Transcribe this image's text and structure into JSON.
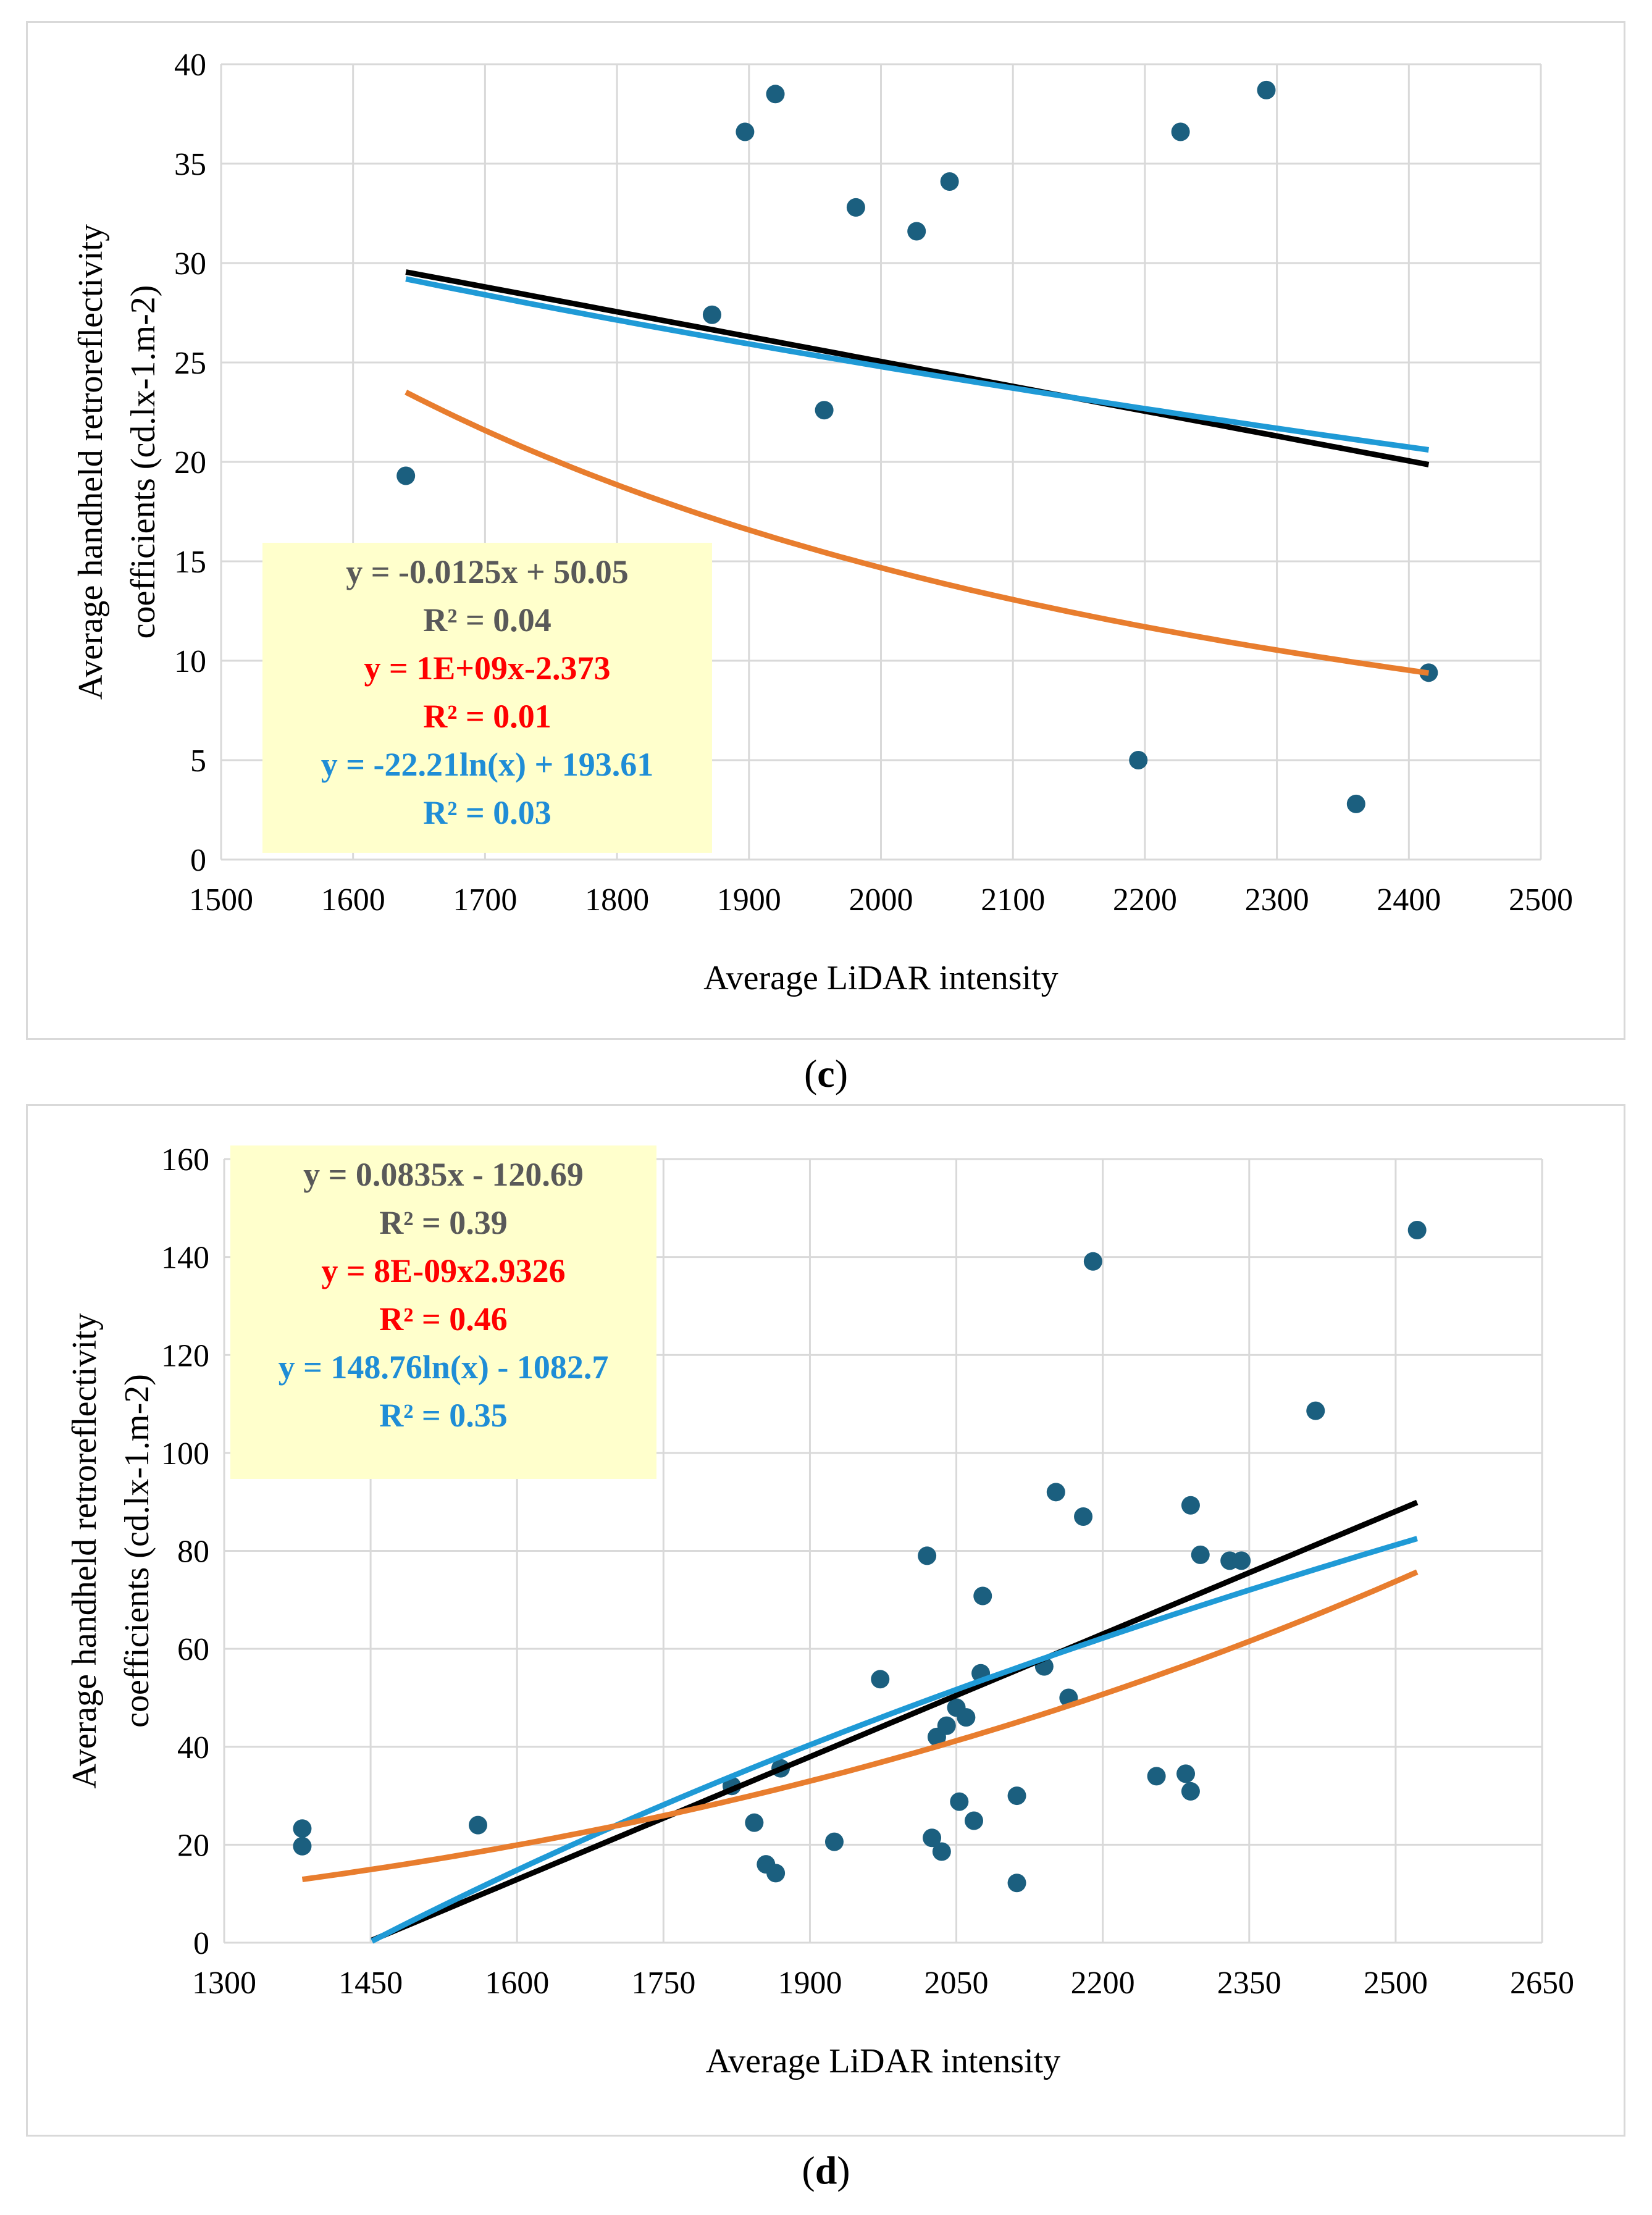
{
  "chart_data": [
    {
      "id": "c",
      "type": "scatter",
      "panel_label": "c",
      "xlabel": "Average LiDAR intensity",
      "ylabel_line1": "Average handheld retroreflectivity",
      "ylabel_line2": "coefficients (cd.lx-1.m-2)",
      "xlim": [
        1500,
        2500
      ],
      "ylim": [
        0,
        40
      ],
      "xticks": [
        1500,
        1600,
        1700,
        1800,
        1900,
        2000,
        2100,
        2200,
        2300,
        2400,
        2500
      ],
      "yticks": [
        0,
        5,
        10,
        15,
        20,
        25,
        30,
        35,
        40
      ],
      "grid": true,
      "points": [
        {
          "x": 1640,
          "y": 19.3
        },
        {
          "x": 1872,
          "y": 27.4
        },
        {
          "x": 1897,
          "y": 36.6
        },
        {
          "x": 1920,
          "y": 38.5
        },
        {
          "x": 1957,
          "y": 22.6
        },
        {
          "x": 1981,
          "y": 32.8
        },
        {
          "x": 2027,
          "y": 31.6
        },
        {
          "x": 2052,
          "y": 34.1
        },
        {
          "x": 2195,
          "y": 5.0
        },
        {
          "x": 2227,
          "y": 36.6
        },
        {
          "x": 2292,
          "y": 38.7
        },
        {
          "x": 2360,
          "y": 2.8
        },
        {
          "x": 2415,
          "y": 9.4
        }
      ],
      "trendlines": [
        {
          "kind": "linear",
          "a": 50.05,
          "b": -0.0125,
          "x_range": [
            1640,
            2415
          ],
          "color": "#000000",
          "equation": "y = -0.0125x + 50.05",
          "r2": "R² = 0.04"
        },
        {
          "kind": "power",
          "a": 1000000000,
          "b": -2.373,
          "x_range": [
            1640,
            2415
          ],
          "color": "#e87d2e",
          "equation": "y = 1E+09x-2.373",
          "r2": "R² = 0.01"
        },
        {
          "kind": "log",
          "a": 193.61,
          "b": -22.21,
          "x_range": [
            1640,
            2415
          ],
          "color": "#1f9ad6",
          "equation": "y = -22.21ln(x) + 193.61",
          "r2": "R² = 0.03"
        }
      ]
    },
    {
      "id": "d",
      "type": "scatter",
      "panel_label": "d",
      "xlabel": "Average LiDAR intensity",
      "ylabel_line1": "Average handheld retroreflectivity",
      "ylabel_line2": "coefficients (cd.lx-1.m-2)",
      "xlim": [
        1300,
        2650
      ],
      "ylim": [
        0,
        160
      ],
      "xticks": [
        1300,
        1450,
        1600,
        1750,
        1900,
        2050,
        2200,
        2350,
        2500,
        2650
      ],
      "yticks": [
        0,
        20,
        40,
        60,
        80,
        100,
        120,
        140,
        160
      ],
      "grid": true,
      "points": [
        {
          "x": 1380,
          "y": 23.3
        },
        {
          "x": 1380,
          "y": 19.7
        },
        {
          "x": 1560,
          "y": 24.0
        },
        {
          "x": 1820,
          "y": 32.0
        },
        {
          "x": 1843,
          "y": 24.5
        },
        {
          "x": 1855,
          "y": 16.0
        },
        {
          "x": 1865,
          "y": 14.2
        },
        {
          "x": 1870,
          "y": 35.6
        },
        {
          "x": 1925,
          "y": 20.6
        },
        {
          "x": 1972,
          "y": 53.8
        },
        {
          "x": 2020,
          "y": 79.0
        },
        {
          "x": 2025,
          "y": 21.4
        },
        {
          "x": 2030,
          "y": 42.0
        },
        {
          "x": 2035,
          "y": 18.6
        },
        {
          "x": 2040,
          "y": 44.3
        },
        {
          "x": 2050,
          "y": 48.0
        },
        {
          "x": 2053,
          "y": 28.8
        },
        {
          "x": 2060,
          "y": 46.0
        },
        {
          "x": 2068,
          "y": 24.9
        },
        {
          "x": 2075,
          "y": 55.0
        },
        {
          "x": 2077,
          "y": 70.8
        },
        {
          "x": 2112,
          "y": 30.0
        },
        {
          "x": 2112,
          "y": 12.2
        },
        {
          "x": 2140,
          "y": 56.4
        },
        {
          "x": 2152,
          "y": 92.0
        },
        {
          "x": 2165,
          "y": 50.0
        },
        {
          "x": 2180,
          "y": 87.0
        },
        {
          "x": 2190,
          "y": 139.1
        },
        {
          "x": 2255,
          "y": 34.0
        },
        {
          "x": 2285,
          "y": 34.5
        },
        {
          "x": 2290,
          "y": 30.9
        },
        {
          "x": 2290,
          "y": 89.3
        },
        {
          "x": 2300,
          "y": 79.2
        },
        {
          "x": 2330,
          "y": 78.0
        },
        {
          "x": 2342,
          "y": 78.0
        },
        {
          "x": 2418,
          "y": 108.6
        },
        {
          "x": 2522,
          "y": 145.5
        }
      ],
      "trendlines": [
        {
          "kind": "linear",
          "a": -120.69,
          "b": 0.0835,
          "x_range": [
            1380,
            2522
          ],
          "color": "#000000",
          "equation": "y = 0.0835x - 120.69",
          "r2": "R² = 0.39"
        },
        {
          "kind": "power",
          "a": 8e-09,
          "b": 2.9326,
          "x_range": [
            1380,
            2522
          ],
          "color": "#e87d2e",
          "equation": "y = 8E-09x2.9326",
          "r2": "R² = 0.46"
        },
        {
          "kind": "log",
          "a": -1082.7,
          "b": 148.76,
          "x_range": [
            1380,
            2522
          ],
          "color": "#1f9ad6",
          "equation": "y = 148.76ln(x) - 1082.7",
          "r2": "R² = 0.35"
        }
      ]
    }
  ],
  "colors": {
    "points": "#1b5f7f",
    "grid": "#d9d9d9",
    "box": "#ffffcc"
  }
}
